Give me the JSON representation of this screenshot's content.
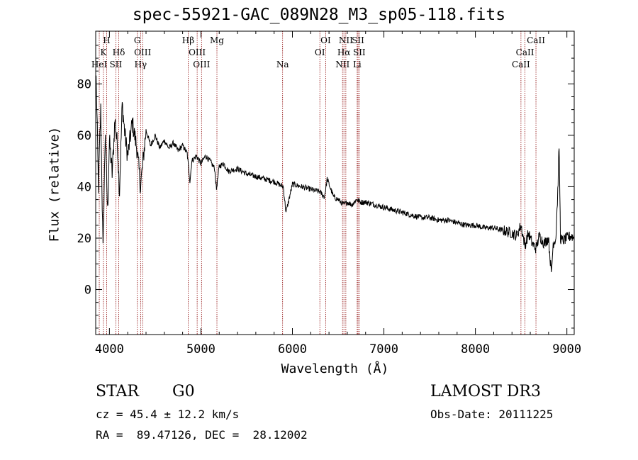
{
  "chart_data": {
    "type": "line",
    "title": "spec-55921-GAC_089N28_M3_sp05-118.fits",
    "xlabel": "Wavelength (Å)",
    "ylabel": "Flux (relative)",
    "xlim": [
      3850,
      9080
    ],
    "ylim": [
      -17.5,
      100.5
    ],
    "xticks": [
      4000,
      5000,
      6000,
      7000,
      8000,
      9000
    ],
    "xtick_labels": [
      "4000",
      "5000",
      "6000",
      "7000",
      "8000",
      "9000"
    ],
    "yticks": [
      0,
      20,
      40,
      60,
      80
    ],
    "ytick_labels": [
      "0",
      "20",
      "40",
      "60",
      "80"
    ],
    "spectrum": {
      "name": "flux",
      "color": "#000000",
      "x": [
        3855,
        3880,
        3905,
        3930,
        3955,
        3980,
        4000,
        4030,
        4060,
        4090,
        4110,
        4140,
        4170,
        4200,
        4250,
        4300,
        4340,
        4400,
        4450,
        4500,
        4550,
        4600,
        4650,
        4700,
        4750,
        4800,
        4850,
        4880,
        4900,
        4950,
        5000,
        5050,
        5100,
        5150,
        5170,
        5200,
        5250,
        5300,
        5400,
        5500,
        5600,
        5700,
        5800,
        5900,
        5930,
        6000,
        6100,
        6200,
        6300,
        6350,
        6380,
        6450,
        6500,
        6560,
        6600,
        6650,
        6700,
        6750,
        6800,
        6900,
        7000,
        7100,
        7200,
        7300,
        7400,
        7500,
        7600,
        7700,
        7800,
        7900,
        8000,
        8100,
        8200,
        8300,
        8400,
        8450,
        8498,
        8542,
        8580,
        8620,
        8662,
        8700,
        8750,
        8800,
        8830,
        8850,
        8880,
        8900,
        8915,
        8930,
        8950,
        9000,
        9050,
        9075
      ],
      "values": [
        82,
        40,
        70,
        15,
        62,
        30,
        58,
        45,
        66,
        55,
        38,
        72,
        60,
        52,
        65,
        55,
        40,
        62,
        56,
        60,
        55,
        58,
        55,
        57,
        54,
        56,
        53,
        42,
        50,
        52,
        49,
        52,
        50,
        47,
        39,
        48,
        49,
        46,
        47,
        45,
        44,
        43,
        42,
        40,
        30,
        41,
        40,
        39,
        38,
        36,
        43,
        36,
        35,
        33,
        34,
        33,
        35,
        34,
        34,
        33,
        32,
        31,
        30,
        29,
        28,
        28,
        27,
        27,
        26,
        25,
        25,
        24,
        24,
        23,
        22,
        21,
        25,
        17,
        22,
        18,
        16,
        21,
        18,
        20,
        6,
        18,
        20,
        38,
        56,
        20,
        19,
        20,
        21,
        20
      ]
    },
    "lines": [
      {
        "label": "H",
        "wave": 3970,
        "row": 0
      },
      {
        "label": "K",
        "wave": 3934,
        "row": 1
      },
      {
        "label": "Hδ",
        "wave": 4102,
        "row": 1
      },
      {
        "label": "HeI",
        "wave": 3889,
        "row": 2
      },
      {
        "label": "SII",
        "wave": 4070,
        "row": 2
      },
      {
        "label": "G",
        "wave": 4305,
        "row": 0
      },
      {
        "label": "OIII",
        "wave": 4363,
        "row": 1
      },
      {
        "label": "Hγ",
        "wave": 4341,
        "row": 2
      },
      {
        "label": "Hβ",
        "wave": 4861,
        "row": 0
      },
      {
        "label": "OIII",
        "wave": 4959,
        "row": 1
      },
      {
        "label": "OIII",
        "wave": 5007,
        "row": 2
      },
      {
        "label": "Mg",
        "wave": 5175,
        "row": 0
      },
      {
        "label": "Na",
        "wave": 5893,
        "row": 2
      },
      {
        "label": "OI",
        "wave": 6364,
        "row": 0
      },
      {
        "label": "OI",
        "wave": 6300,
        "row": 1
      },
      {
        "label": "NII",
        "wave": 6584,
        "row": 0
      },
      {
        "label": "SII",
        "wave": 6717,
        "row": 0
      },
      {
        "label": "Hα",
        "wave": 6563,
        "row": 1
      },
      {
        "label": "SII",
        "wave": 6731,
        "row": 1
      },
      {
        "label": "NII",
        "wave": 6548,
        "row": 2
      },
      {
        "label": "Li",
        "wave": 6708,
        "row": 2
      },
      {
        "label": "CaII",
        "wave": 8662,
        "row": 0
      },
      {
        "label": "CaII",
        "wave": 8542,
        "row": 1
      },
      {
        "label": "CaII",
        "wave": 8498,
        "row": 2
      }
    ],
    "line_color": "#8b0000"
  },
  "info": {
    "class": "STAR",
    "subclass": "G0",
    "survey": "LAMOST DR3",
    "cz": "cz = 45.4 ± 12.2 km/s",
    "obs_date": "Obs-Date: 20111225",
    "coords": "RA =  89.47126, DEC =  28.12002"
  }
}
